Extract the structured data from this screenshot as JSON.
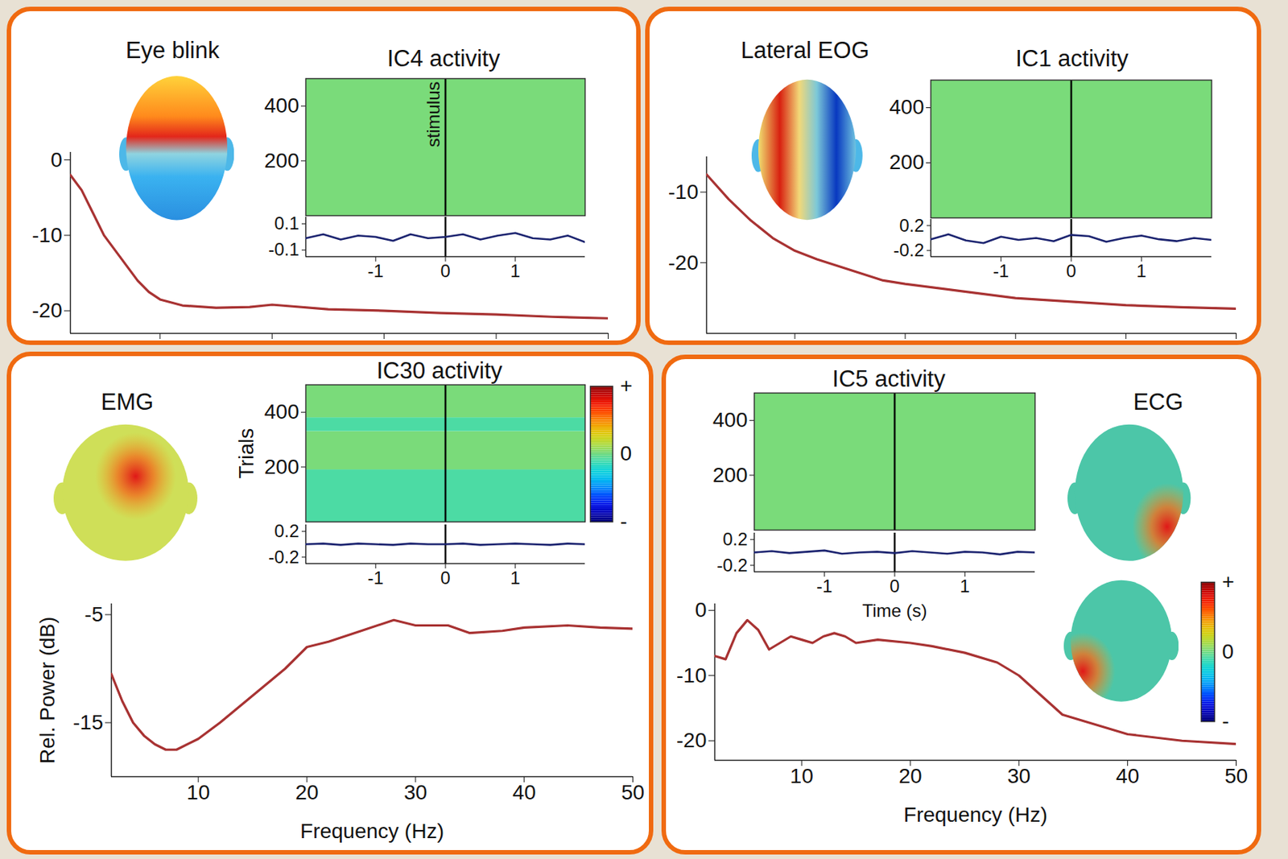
{
  "chart_data": [
    {
      "title": "Eye blink",
      "type": "line",
      "component": {
        "title": "IC4 activity",
        "type": "heatmap",
        "annotation": "stimulus",
        "stimulus_time": 0,
        "xlim": [
          -2,
          2
        ],
        "ylim": [
          0,
          500
        ],
        "yticks": [
          200,
          400
        ],
        "ylabel": null,
        "color_lim": [
          -1,
          1
        ],
        "cells": [
          {
            "from": 0,
            "to": 500,
            "value": 0
          }
        ]
      },
      "mean": {
        "type": "line",
        "color": "#1c2470",
        "x": [
          -2,
          -1.75,
          -1.5,
          -1.25,
          -1,
          -0.75,
          -0.5,
          -0.25,
          0,
          0.25,
          0.5,
          0.75,
          1,
          1.25,
          1.5,
          1.75,
          2
        ],
        "values": [
          -0.01,
          0.02,
          -0.02,
          0.01,
          0.0,
          -0.03,
          0.02,
          -0.01,
          0.0,
          0.02,
          -0.02,
          0.01,
          0.03,
          -0.01,
          -0.02,
          0.01,
          -0.04
        ],
        "xlim": [
          -2,
          2
        ],
        "xticks": [
          -1,
          0,
          1
        ],
        "ylim": [
          -0.15,
          0.15
        ],
        "yticks": [
          0.1,
          -0.1
        ],
        "xlabel": null
      },
      "spectrum": {
        "type": "line",
        "color": "#a83232",
        "x": [
          2,
          3,
          4,
          5,
          6,
          7,
          8,
          9,
          10,
          12,
          15,
          18,
          20,
          25,
          30,
          35,
          40,
          45,
          50
        ],
        "values": [
          -2,
          -4,
          -7,
          -10,
          -12,
          -14,
          -16,
          -17.5,
          -18.5,
          -19.3,
          -19.6,
          -19.5,
          -19.2,
          -19.8,
          -20,
          -20.3,
          -20.5,
          -20.8,
          -21
        ],
        "xlim": [
          2,
          50
        ],
        "xticks": [
          10,
          20,
          30,
          40,
          50
        ],
        "ylim": [
          -23,
          1
        ],
        "yticks": [
          0,
          -10,
          -20
        ],
        "xlabel": null,
        "ylabel": null,
        "tick_labels": "y"
      }
    },
    {
      "title": "Lateral EOG",
      "type": "line",
      "component": {
        "title": "IC1 activity",
        "type": "heatmap",
        "stimulus_time": 0,
        "xlim": [
          -2,
          2
        ],
        "ylim": [
          0,
          500
        ],
        "yticks": [
          200,
          400
        ],
        "ylabel": null,
        "color_lim": [
          -1,
          1
        ],
        "cells": [
          {
            "from": 0,
            "to": 500,
            "value": 0
          }
        ]
      },
      "mean": {
        "type": "line",
        "color": "#1c2470",
        "x": [
          -2,
          -1.75,
          -1.5,
          -1.25,
          -1,
          -0.75,
          -0.5,
          -0.25,
          0,
          0.25,
          0.5,
          0.75,
          1,
          1.25,
          1.5,
          1.75,
          2
        ],
        "values": [
          -0.02,
          0.06,
          -0.04,
          -0.08,
          0.02,
          -0.03,
          0.0,
          -0.05,
          0.05,
          0.03,
          -0.06,
          0.0,
          0.04,
          -0.02,
          -0.05,
          0.0,
          -0.03
        ],
        "xlim": [
          -2,
          2
        ],
        "xticks": [
          -1,
          0,
          1
        ],
        "ylim": [
          -0.3,
          0.3
        ],
        "yticks": [
          0.2,
          -0.2
        ],
        "xlabel": null
      },
      "spectrum": {
        "type": "line",
        "color": "#a83232",
        "x": [
          2,
          4,
          6,
          8,
          10,
          12,
          15,
          18,
          20,
          25,
          30,
          35,
          40,
          45,
          50
        ],
        "values": [
          -7.5,
          -11,
          -14,
          -16.5,
          -18.3,
          -19.5,
          -21,
          -22.5,
          -23,
          -24,
          -25,
          -25.5,
          -26,
          -26.3,
          -26.5
        ],
        "xlim": [
          2,
          50
        ],
        "xticks": [
          10,
          20,
          30,
          40,
          50
        ],
        "ylim": [
          -30,
          -5
        ],
        "yticks": [
          -10,
          -20
        ],
        "xlabel": null,
        "ylabel": null,
        "tick_labels": "y"
      }
    },
    {
      "title": "EMG",
      "type": "line",
      "component": {
        "title": "IC30 activity",
        "type": "heatmap",
        "stimulus_time": 0,
        "xlim": [
          -2,
          2
        ],
        "ylim": [
          0,
          500
        ],
        "yticks": [
          200,
          400
        ],
        "ylabel": "Trials",
        "color_lim": [
          -1,
          1
        ],
        "cells": [
          {
            "from": 0,
            "to": 190,
            "value": -0.1
          },
          {
            "from": 190,
            "to": 330,
            "value": 0
          },
          {
            "from": 330,
            "to": 380,
            "value": -0.1
          },
          {
            "from": 380,
            "to": 500,
            "value": 0
          }
        ],
        "colorbar": {
          "ticks": [
            {
              "value": 1,
              "label": "+"
            },
            0,
            {
              "value": -1,
              "label": "-"
            }
          ]
        }
      },
      "mean": {
        "type": "line",
        "color": "#1c2470",
        "x": [
          -2,
          -1.75,
          -1.5,
          -1.25,
          -1,
          -0.75,
          -0.5,
          -0.25,
          0,
          0.25,
          0.5,
          0.75,
          1,
          1.25,
          1.5,
          1.75,
          2
        ],
        "values": [
          0.0,
          0.01,
          -0.01,
          0.01,
          0.0,
          -0.01,
          0.01,
          0.0,
          0.0,
          0.01,
          -0.01,
          0.0,
          0.01,
          0.0,
          -0.01,
          0.01,
          0.0
        ],
        "xlim": [
          -2,
          2
        ],
        "xticks": [
          -1,
          0,
          1
        ],
        "ylim": [
          -0.3,
          0.3
        ],
        "yticks": [
          0.2,
          -0.2
        ],
        "xlabel": null
      },
      "spectrum": {
        "type": "line",
        "color": "#a83232",
        "x": [
          2,
          3,
          4,
          5,
          6,
          7,
          8,
          10,
          12,
          15,
          18,
          20,
          22,
          25,
          28,
          30,
          33,
          35,
          38,
          40,
          44,
          47,
          50
        ],
        "values": [
          -10.5,
          -13,
          -15,
          -16.2,
          -17,
          -17.5,
          -17.5,
          -16.5,
          -15,
          -12.5,
          -10,
          -8,
          -7.5,
          -6.5,
          -5.5,
          -6,
          -6,
          -6.7,
          -6.5,
          -6.2,
          -6,
          -6.2,
          -6.3
        ],
        "xlim": [
          2,
          50
        ],
        "xticks": [
          10,
          20,
          30,
          40,
          50
        ],
        "ylim": [
          -20,
          -4
        ],
        "yticks": [
          -5,
          -15
        ],
        "xlabel": "Frequency (Hz)",
        "ylabel": "Rel. Power (dB)"
      }
    },
    {
      "title": "ECG",
      "type": "line",
      "component": {
        "title": "IC5 activity",
        "type": "heatmap",
        "stimulus_time": 0,
        "xlim": [
          -2,
          2
        ],
        "ylim": [
          0,
          500
        ],
        "yticks": [
          200,
          400
        ],
        "ylabel": null,
        "color_lim": [
          -1,
          1
        ],
        "cells": [
          {
            "from": 0,
            "to": 500,
            "value": 0
          }
        ],
        "colorbar": {
          "ticks": [
            {
              "value": 1,
              "label": "+"
            },
            0,
            {
              "value": -1,
              "label": "-"
            }
          ]
        }
      },
      "mean": {
        "type": "line",
        "color": "#1c2470",
        "x": [
          -2,
          -1.75,
          -1.5,
          -1.25,
          -1,
          -0.75,
          -0.5,
          -0.25,
          0,
          0.25,
          0.5,
          0.75,
          1,
          1.25,
          1.5,
          1.75,
          2
        ],
        "values": [
          0.0,
          0.02,
          -0.01,
          0.01,
          0.03,
          -0.02,
          0.0,
          0.01,
          -0.01,
          0.02,
          0.0,
          -0.02,
          0.01,
          0.0,
          -0.03,
          0.01,
          0.0
        ],
        "xlim": [
          -2,
          2
        ],
        "xticks": [
          -1,
          0,
          1
        ],
        "ylim": [
          -0.3,
          0.3
        ],
        "yticks": [
          0.2,
          -0.2
        ],
        "xlabel": "Time (s)"
      },
      "spectrum": {
        "type": "line",
        "color": "#a83232",
        "x": [
          2,
          3,
          4,
          5,
          6,
          7,
          8,
          9,
          10,
          11,
          12,
          13,
          14,
          15,
          17,
          20,
          22,
          25,
          28,
          30,
          32,
          34,
          36,
          38,
          40,
          45,
          50
        ],
        "values": [
          -7,
          -7.5,
          -3.5,
          -1.5,
          -3,
          -6,
          -5,
          -4,
          -4.5,
          -5,
          -4,
          -3.5,
          -4,
          -5,
          -4.5,
          -5,
          -5.5,
          -6.5,
          -8,
          -10,
          -13,
          -16,
          -17,
          -18,
          -19,
          -20,
          -20.5
        ],
        "xlim": [
          2,
          50
        ],
        "xticks": [
          10,
          20,
          30,
          40,
          50
        ],
        "ylim": [
          -23,
          1
        ],
        "yticks": [
          0,
          -10,
          -20
        ],
        "xlabel": "Frequency (Hz)",
        "ylabel": null
      }
    }
  ]
}
